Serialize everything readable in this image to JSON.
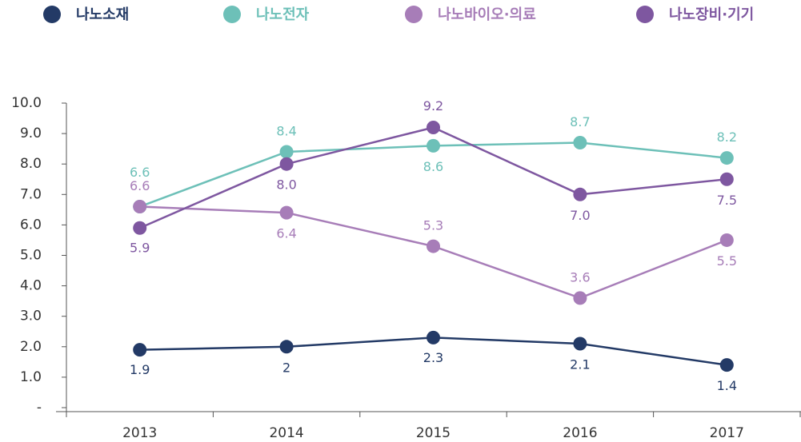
{
  "chart_data": {
    "type": "line",
    "categories": [
      "2013",
      "2014",
      "2015",
      "2016",
      "2017"
    ],
    "series": [
      {
        "name": "나노소재",
        "color": "#233a66",
        "values": [
          1.9,
          2,
          2.3,
          2.1,
          1.4
        ]
      },
      {
        "name": "나노전자",
        "color": "#6dc0b8",
        "values": [
          6.6,
          8.4,
          8.6,
          8.7,
          8.2
        ]
      },
      {
        "name": "나노바이오·의료",
        "color": "#a77db8",
        "values": [
          6.6,
          6.4,
          5.3,
          3.6,
          5.5
        ]
      },
      {
        "name": "나노장비·기기",
        "color": "#7e57a0",
        "values": [
          5.9,
          8.0,
          9.2,
          7.0,
          7.5
        ],
        "value_labels": [
          "5.9",
          "8.0",
          "9.2",
          "7.0",
          "7.5"
        ]
      }
    ],
    "ylim": [
      0,
      10
    ],
    "yticks": [
      {
        "value": 0,
        "label": "-"
      },
      {
        "value": 1,
        "label": "1.0"
      },
      {
        "value": 2,
        "label": "2.0"
      },
      {
        "value": 3,
        "label": "3.0"
      },
      {
        "value": 4,
        "label": "4.0"
      },
      {
        "value": 5,
        "label": "5.0"
      },
      {
        "value": 6,
        "label": "6.0"
      },
      {
        "value": 7,
        "label": "7.0"
      },
      {
        "value": 8,
        "label": "8.0"
      },
      {
        "value": 9,
        "label": "9.0"
      },
      {
        "value": 10,
        "label": "10.0"
      }
    ],
    "legend": "top"
  }
}
